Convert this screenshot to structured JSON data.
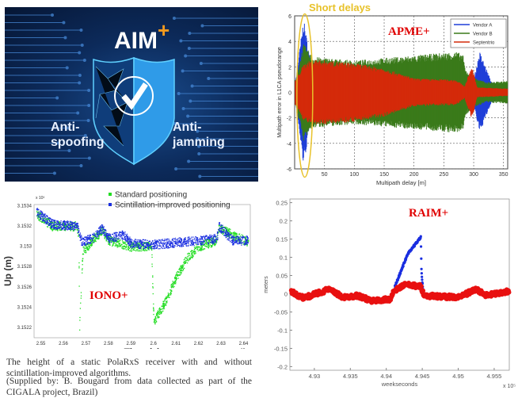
{
  "aim_image": {
    "title": "AIM",
    "plus": "+",
    "left_label": "Anti-\nspoofing",
    "right_label": "Anti-\njamming",
    "icon": "shield-check-icon"
  },
  "colors": {
    "red_tag": "#e00000",
    "blue": "#1f3fd8",
    "green": "#3a7a1a",
    "red": "#e02000",
    "light_green": "#22dd22",
    "ellipse": "#e8c22a"
  },
  "chart_data": [
    {
      "id": "apme",
      "type": "area",
      "tag": "APME+",
      "annotation": "Short delays",
      "xlabel": "Multipath delay [m]",
      "ylabel": "Multipath error in L1CA pseudorange",
      "xlim": [
        0,
        357
      ],
      "ylim": [
        -6,
        6
      ],
      "xticks": [
        50,
        100,
        150,
        200,
        250,
        300,
        350
      ],
      "yticks": [
        -6,
        -4,
        -2,
        0,
        2,
        4,
        6
      ],
      "grid": true,
      "legend": "top-right",
      "series": [
        {
          "name": "Vendor A",
          "color": "#1f3fd8",
          "envelope": [
            [
              2,
              1
            ],
            [
              15,
              5.8
            ],
            [
              28,
              2
            ],
            [
              280,
              2
            ],
            [
              290,
              1
            ],
            [
              300,
              1
            ],
            [
              310,
              3.2
            ],
            [
              320,
              2
            ],
            [
              330,
              0.8
            ],
            [
              357,
              0.5
            ]
          ]
        },
        {
          "name": "Vendor B",
          "color": "#3a7a1a",
          "envelope": [
            [
              2,
              1
            ],
            [
              15,
              3.8
            ],
            [
              30,
              2.8
            ],
            [
              100,
              2.5
            ],
            [
              200,
              2.9
            ],
            [
              270,
              3.2
            ],
            [
              282,
              3
            ],
            [
              286,
              1.8
            ],
            [
              300,
              1.2
            ],
            [
              320,
              0.8
            ],
            [
              357,
              0.9
            ]
          ]
        },
        {
          "name": "Septentrio",
          "color": "#d42a0a",
          "envelope": [
            [
              2,
              1
            ],
            [
              15,
              2.2
            ],
            [
              30,
              2.6
            ],
            [
              100,
              2.3
            ],
            [
              150,
              1.9
            ],
            [
              200,
              1.1
            ],
            [
              270,
              1.0
            ],
            [
              285,
              0.5
            ],
            [
              297,
              2.1
            ],
            [
              306,
              0.4
            ],
            [
              357,
              0.3
            ]
          ]
        }
      ]
    },
    {
      "id": "iono",
      "type": "scatter",
      "tag": "IONO+",
      "xlabel": "Time (s)",
      "ylabel": "Up (m)",
      "x_exponent": "x 10⁵",
      "y_exponent": "x 10³",
      "xlim": [
        2.547,
        2.643
      ],
      "ylim": [
        3.1521,
        3.15341
      ],
      "xticks": [
        "2.55",
        "2.56",
        "2.57",
        "2.58",
        "2.59",
        "2.6",
        "2.61",
        "2.62",
        "2.63",
        "2.64"
      ],
      "yticks": [
        "3.1522",
        "3.1524",
        "3.1526",
        "3.1528",
        "3.153",
        "3.1532",
        "3.1534"
      ],
      "legend": "top-right",
      "series": [
        {
          "name": "Standard positioning",
          "color": "#22dd22",
          "points": [
            [
              2.548,
              3.15332
            ],
            [
              2.555,
              3.1532
            ],
            [
              2.566,
              3.1532
            ],
            [
              2.5667,
              3.1531
            ],
            [
              2.567,
              3.1522
            ],
            [
              2.5685,
              3.15295
            ],
            [
              2.573,
              3.15306
            ],
            [
              2.577,
              3.15316
            ],
            [
              2.58,
              3.15306
            ],
            [
              2.59,
              3.153
            ],
            [
              2.599,
              3.153
            ],
            [
              2.6,
              3.15226
            ],
            [
              2.605,
              3.15245
            ],
            [
              2.61,
              3.1527
            ],
            [
              2.615,
              3.15289
            ],
            [
              2.62,
              3.153
            ],
            [
              2.628,
              3.15306
            ],
            [
              2.629,
              3.15318
            ],
            [
              2.643,
              3.15303
            ]
          ]
        },
        {
          "name": "Scintillation-improved positioning",
          "color": "#1a2ee0",
          "points": [
            [
              2.548,
              3.15334
            ],
            [
              2.555,
              3.15322
            ],
            [
              2.566,
              3.1532
            ],
            [
              2.568,
              3.15305
            ],
            [
              2.573,
              3.15308
            ],
            [
              2.577,
              3.15318
            ],
            [
              2.58,
              3.15308
            ],
            [
              2.587,
              3.15312
            ],
            [
              2.59,
              3.15303
            ],
            [
              2.6,
              3.15302
            ],
            [
              2.62,
              3.15306
            ],
            [
              2.628,
              3.15308
            ],
            [
              2.629,
              3.1532
            ],
            [
              2.635,
              3.15306
            ],
            [
              2.643,
              3.15306
            ]
          ]
        }
      ]
    },
    {
      "id": "raim",
      "type": "scatter",
      "tag": "RAIM+",
      "xlabel": "weekseconds",
      "ylabel": "meters",
      "x_exponent": "x 10⁵",
      "xlim": [
        4.9266,
        4.9571
      ],
      "ylim": [
        -0.21,
        0.26
      ],
      "xticks": [
        "4.93",
        "4.935",
        "4.94",
        "4.945",
        "4.95",
        "4.955"
      ],
      "yticks": [
        "-0.2",
        "-0.15",
        "-0.1",
        "-0.05",
        "0",
        "0.05",
        "0.1",
        "0.15",
        "0.2",
        "0.25"
      ],
      "series": [
        {
          "color": "#1a2ee0",
          "points": [
            [
              4.9412,
              0.02
            ],
            [
              4.943,
              0.11
            ],
            [
              4.9448,
              0.155
            ],
            [
              4.9449,
              0.06
            ],
            [
              4.9451,
              0.01
            ]
          ]
        },
        {
          "color": "#e81010",
          "points": [
            [
              4.9268,
              0.005
            ],
            [
              4.9285,
              -0.012
            ],
            [
              4.932,
              0.012
            ],
            [
              4.934,
              -0.01
            ],
            [
              4.936,
              -0.005
            ],
            [
              4.938,
              -0.02
            ],
            [
              4.9405,
              -0.015
            ],
            [
              4.941,
              0.005
            ],
            [
              4.9425,
              0.025
            ],
            [
              4.9448,
              0.02
            ],
            [
              4.9453,
              -0.005
            ],
            [
              4.95,
              -0.01
            ],
            [
              4.9525,
              0.012
            ],
            [
              4.954,
              -0.005
            ],
            [
              4.9571,
              0.008
            ]
          ]
        }
      ]
    }
  ],
  "caption": {
    "line1": "The height of a static PolaRxS receiver with and without scintillation-improved algorithms.",
    "line2": "(Supplied by: B. Bougard from data collected as part of the CIGALA project, Brazil)"
  }
}
